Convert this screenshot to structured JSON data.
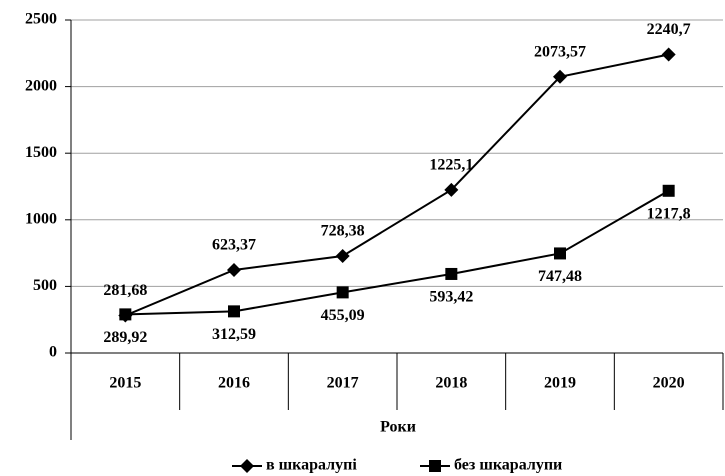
{
  "chart_data": {
    "type": "line",
    "x_label": "Роки",
    "categories": [
      "2015",
      "2016",
      "2017",
      "2018",
      "2019",
      "2020"
    ],
    "series": [
      {
        "name": "в шкаралупі",
        "color": "#000000",
        "marker": "diamond",
        "values": [
          281.68,
          623.37,
          728.38,
          1225.1,
          2073.57,
          2240.7
        ],
        "value_labels": [
          "281,68",
          "623,37",
          "728,38",
          "1225,1",
          "2073,57",
          "2240,7"
        ]
      },
      {
        "name": "без шкаралупи",
        "color": "#000000",
        "marker": "square",
        "values": [
          289.92,
          312.59,
          455.09,
          593.42,
          747.48,
          1217.8
        ],
        "value_labels": [
          "289,92",
          "312,59",
          "455,09",
          "593,42",
          "747,48",
          "1217,8"
        ]
      }
    ],
    "ylim": [
      0,
      2500
    ],
    "yticks": [
      0,
      500,
      1000,
      1500,
      2000,
      2500
    ],
    "grid": true,
    "legend": "bottom"
  }
}
